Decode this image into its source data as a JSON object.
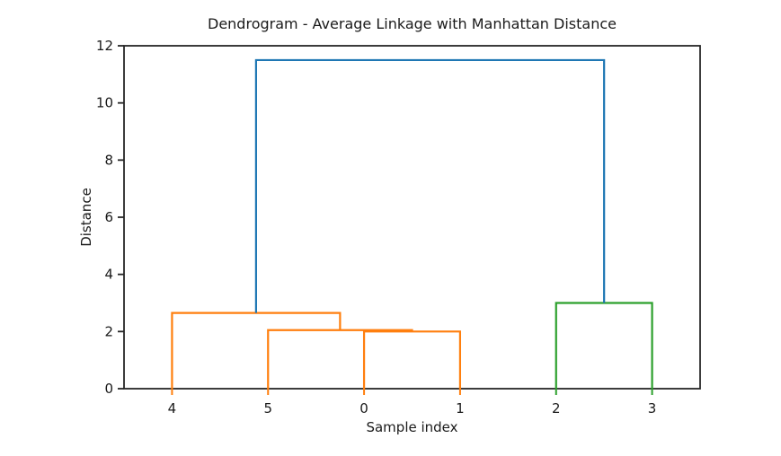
{
  "chart_data": {
    "type": "dendrogram",
    "title": "Dendrogram - Average Linkage with Manhattan Distance",
    "xlabel": "Sample index",
    "ylabel": "Distance",
    "xlim": [
      0,
      60
    ],
    "ylim": [
      0,
      12
    ],
    "yticks": [
      0,
      2,
      4,
      6,
      8,
      10,
      12
    ],
    "leaves": [
      {
        "label": "4",
        "x": 5,
        "color_key": "orange"
      },
      {
        "label": "5",
        "x": 15,
        "color_key": "orange"
      },
      {
        "label": "0",
        "x": 25,
        "color_key": "orange"
      },
      {
        "label": "1",
        "x": 35,
        "color_key": "orange"
      },
      {
        "label": "2",
        "x": 45,
        "color_key": "green"
      },
      {
        "label": "3",
        "x": 55,
        "color_key": "green"
      }
    ],
    "colors": {
      "orange": "#ff7f0e",
      "green": "#2ca02c",
      "blue": "#1f77b4",
      "axis": "#262626"
    },
    "links": [
      {
        "merge": "0+1",
        "height": 2.0,
        "x1": 25,
        "base1": 0,
        "x2": 35,
        "base2": 0,
        "color_key": "orange"
      },
      {
        "merge": "5+(0,1)",
        "height": 2.05,
        "x1": 15,
        "base1": 0,
        "x2": 30,
        "base2": 2.0,
        "color_key": "orange"
      },
      {
        "merge": "4+(5,0,1)",
        "height": 2.65,
        "x1": 5,
        "base1": 0,
        "x2": 22.5,
        "base2": 2.05,
        "color_key": "orange"
      },
      {
        "merge": "2+3",
        "height": 3.0,
        "x1": 45,
        "base1": 0,
        "x2": 55,
        "base2": 0,
        "color_key": "green"
      },
      {
        "merge": "(4,5,0,1)+(2,3)",
        "height": 11.5,
        "x1": 13.75,
        "base1": 2.65,
        "x2": 50,
        "base2": 3.0,
        "color_key": "blue"
      }
    ],
    "grid": false,
    "legend": "none"
  }
}
